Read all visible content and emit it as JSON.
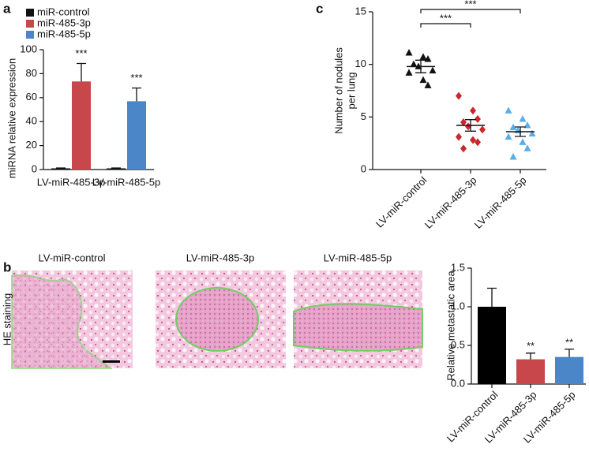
{
  "chart_data": [
    {
      "type": "bar",
      "panel_label": "a",
      "ylabel": "miRNA relative expression",
      "categories": [
        "LV-miR-485-3p",
        "LV-miR-485-5p"
      ],
      "series": [
        {
          "name": "miR-control",
          "color": "#111111",
          "values": [
            1,
            1
          ],
          "errors": [
            0.3,
            0.3
          ]
        },
        {
          "name": "miR-485-3p",
          "color": "#c8474a",
          "values": [
            73.5,
            null
          ],
          "errors": [
            15,
            null
          ],
          "annotations": [
            "***",
            null
          ]
        },
        {
          "name": "miR-485-5p",
          "color": "#4a86c8",
          "values": [
            null,
            57
          ],
          "errors": [
            null,
            11
          ],
          "annotations": [
            null,
            "***"
          ]
        }
      ],
      "ylim": [
        0,
        100
      ],
      "yticks": [
        0,
        20,
        40,
        60,
        80,
        100
      ]
    },
    {
      "type": "scatter",
      "panel_label": "c",
      "ylabel": [
        "Number of nodules",
        "per lung"
      ],
      "categories": [
        "LV-miR-control",
        "LV-miR-485-3p",
        "LV-miR-485-5p"
      ],
      "groups": [
        {
          "color": "#111111",
          "marker": "triangle",
          "values": [
            11.1,
            10.7,
            10.5,
            10.0,
            9.8,
            9.4,
            9.2,
            8.5,
            8.0
          ],
          "mean": 9.8,
          "sem": 0.6
        },
        {
          "color": "#c8272c",
          "marker": "diamond",
          "values": [
            7.0,
            5.6,
            4.8,
            4.5,
            4.1,
            3.8,
            3.1,
            2.8,
            2.6,
            2.0
          ],
          "mean": 4.2,
          "sem": 0.55
        },
        {
          "color": "#5aaee8",
          "marker": "triangle",
          "values": [
            5.6,
            4.8,
            4.2,
            4.0,
            3.7,
            3.4,
            3.1,
            2.6,
            2.0,
            1.2
          ],
          "mean": 3.6,
          "sem": 0.45
        }
      ],
      "significance": [
        "***",
        "***"
      ],
      "ylim": [
        0,
        15
      ],
      "yticks": [
        0,
        5,
        10,
        15
      ]
    },
    {
      "type": "bar",
      "panel_label": "b",
      "ylabel": "Relative metastatic area",
      "categories": [
        "LV-miR-control",
        "LV-miR-485-3p",
        "LV-miR-485-5p"
      ],
      "values": [
        1.0,
        0.32,
        0.35
      ],
      "errors": [
        0.24,
        0.08,
        0.1
      ],
      "colors": [
        "#000000",
        "#c8474a",
        "#4a86c8"
      ],
      "annotations": [
        null,
        "**",
        "**"
      ],
      "ylim": [
        0,
        1.5
      ],
      "yticks": [
        {
          "value": 0,
          "label": "0.0"
        },
        0.5,
        {
          "value": 1,
          "label": "1.0"
        },
        1.5
      ]
    }
  ],
  "he_images": {
    "row_label": "HE staining",
    "titles": [
      "LV-miR-control",
      "LV-miR-485-3p",
      "LV-miR-485-5p"
    ]
  }
}
